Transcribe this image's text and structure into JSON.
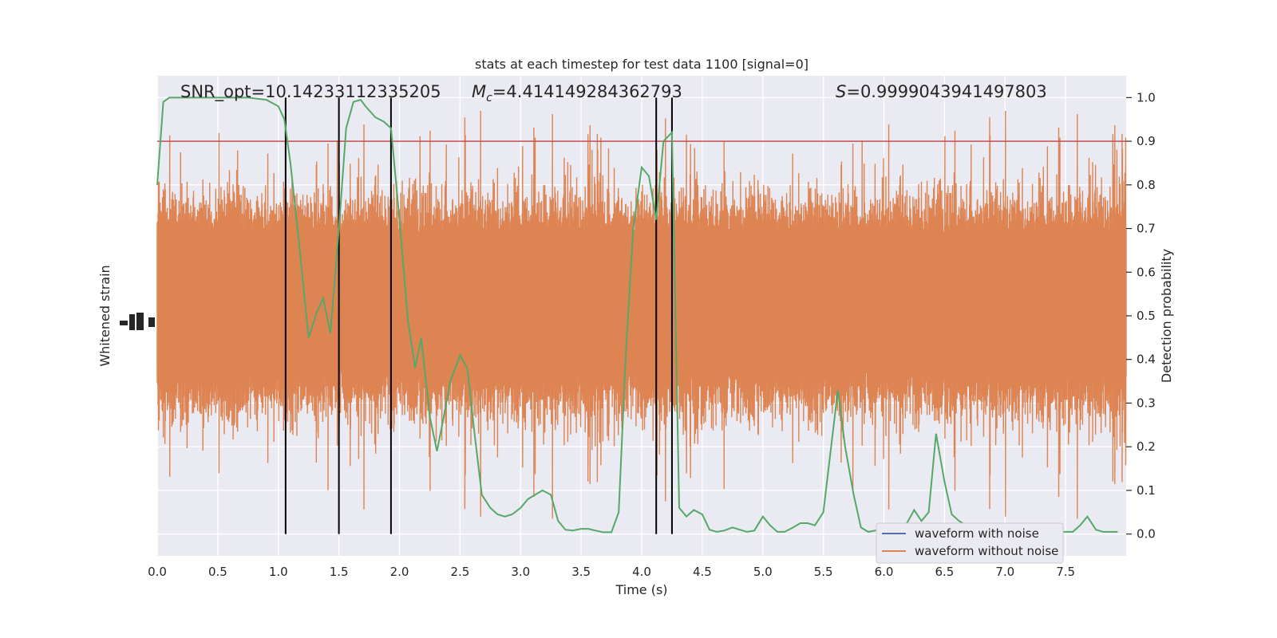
{
  "chart_data": {
    "type": "line",
    "title": "stats at each timestep for test data 1100 [signal=0]",
    "xlabel": "Time (s)",
    "ylabel_left": "Whitened strain",
    "ylabel_right": "Detection probability",
    "xlim": [
      0,
      8.0
    ],
    "ylim_right": [
      -0.05,
      1.05
    ],
    "x_ticks": [
      "0.0",
      "0.5",
      "1.0",
      "1.5",
      "2.0",
      "2.5",
      "3.0",
      "3.5",
      "4.0",
      "4.5",
      "5.0",
      "5.5",
      "6.0",
      "6.5",
      "7.0",
      "7.5"
    ],
    "y_ticks_right": [
      "0.0",
      "0.1",
      "0.2",
      "0.3",
      "0.4",
      "0.5",
      "0.6",
      "0.7",
      "0.8",
      "0.9",
      "1.0"
    ],
    "grid": true,
    "annotations": {
      "snr": "SNR_opt=10.14233112335205",
      "mc": "=4.414149284362793",
      "s": "=0.9999043941497803"
    },
    "threshold": 0.9,
    "trigger_lines_x": [
      1.06,
      1.5,
      1.93,
      4.12,
      4.25
    ],
    "legend_position": "lower right",
    "series": [
      {
        "name": "waveform with noise",
        "color": "#4c72b0",
        "values": []
      },
      {
        "name": "waveform without noise",
        "color": "#dd8452",
        "values": []
      },
      {
        "color": "#55a868",
        "x": [
          0.0,
          0.05,
          0.1,
          0.15,
          0.3,
          0.5,
          0.75,
          0.9,
          1.0,
          1.05,
          1.1,
          1.17,
          1.25,
          1.32,
          1.37,
          1.43,
          1.5,
          1.56,
          1.62,
          1.68,
          1.72,
          1.8,
          1.87,
          1.93,
          2.0,
          2.07,
          2.13,
          2.18,
          2.25,
          2.31,
          2.36,
          2.42,
          2.5,
          2.56,
          2.62,
          2.68,
          2.75,
          2.81,
          2.87,
          2.93,
          3.0,
          3.06,
          3.12,
          3.18,
          3.25,
          3.31,
          3.37,
          3.43,
          3.5,
          3.56,
          3.62,
          3.68,
          3.75,
          3.81,
          3.87,
          3.93,
          4.0,
          4.06,
          4.12,
          4.18,
          4.25,
          4.31,
          4.37,
          4.43,
          4.5,
          4.56,
          4.62,
          4.68,
          4.75,
          4.81,
          4.87,
          4.93,
          5.0,
          5.06,
          5.12,
          5.18,
          5.25,
          5.31,
          5.37,
          5.43,
          5.5,
          5.56,
          5.62,
          5.68,
          5.75,
          5.81,
          5.87,
          5.93,
          6.0,
          6.06,
          6.12,
          6.18,
          6.25,
          6.31,
          6.37,
          6.43,
          6.5,
          6.56,
          6.62,
          6.68,
          6.75,
          6.81,
          6.87,
          6.93,
          7.0,
          7.06,
          7.12,
          7.18,
          7.25,
          7.31,
          7.37,
          7.43,
          7.5,
          7.56,
          7.62,
          7.68,
          7.75,
          7.81,
          7.87,
          7.93
        ],
        "values": [
          0.8,
          0.99,
          1.0,
          1.0,
          1.0,
          1.0,
          1.0,
          0.995,
          0.98,
          0.95,
          0.85,
          0.67,
          0.45,
          0.51,
          0.54,
          0.46,
          0.7,
          0.93,
          0.99,
          0.995,
          0.98,
          0.955,
          0.945,
          0.93,
          0.72,
          0.49,
          0.38,
          0.45,
          0.27,
          0.19,
          0.26,
          0.35,
          0.41,
          0.38,
          0.23,
          0.09,
          0.06,
          0.045,
          0.04,
          0.045,
          0.06,
          0.08,
          0.09,
          0.1,
          0.09,
          0.03,
          0.01,
          0.008,
          0.012,
          0.012,
          0.008,
          0.004,
          0.004,
          0.05,
          0.42,
          0.7,
          0.84,
          0.82,
          0.72,
          0.9,
          0.92,
          0.06,
          0.04,
          0.055,
          0.045,
          0.01,
          0.005,
          0.008,
          0.015,
          0.01,
          0.005,
          0.008,
          0.04,
          0.02,
          0.005,
          0.005,
          0.015,
          0.025,
          0.025,
          0.02,
          0.05,
          0.19,
          0.33,
          0.2,
          0.09,
          0.015,
          0.005,
          0.008,
          0.01,
          0.005,
          0.01,
          0.02,
          0.055,
          0.03,
          0.05,
          0.23,
          0.12,
          0.045,
          0.03,
          0.02,
          0.015,
          0.01,
          0.01,
          0.008,
          0.01,
          0.01,
          0.005,
          0.005,
          0.008,
          0.01,
          0.01,
          0.005,
          0.005,
          0.005,
          0.02,
          0.04,
          0.01,
          0.005,
          0.005,
          0.005
        ]
      }
    ]
  }
}
